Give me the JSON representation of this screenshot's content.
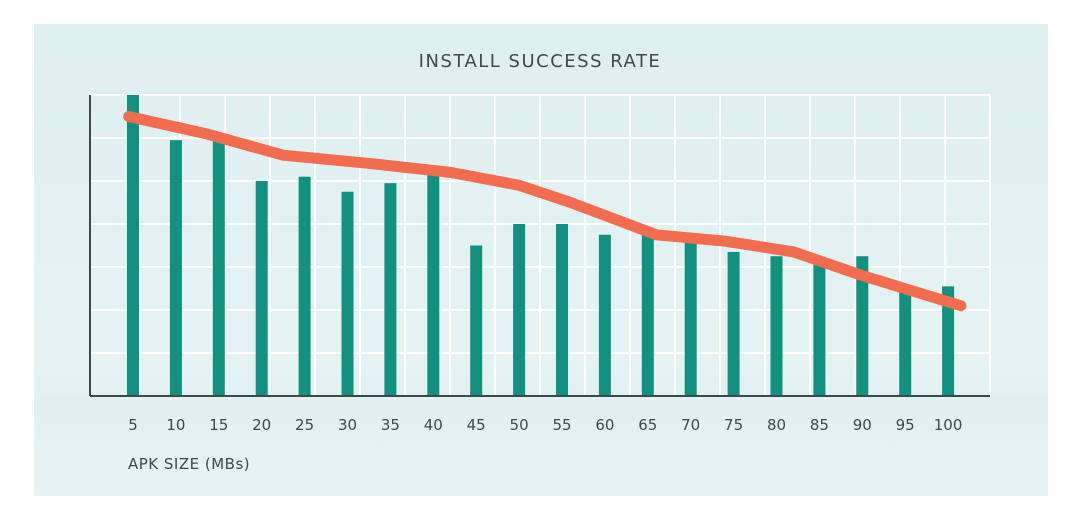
{
  "chart_data": {
    "type": "bar",
    "title": "INSTALL SUCCESS RATE",
    "xlabel": "APK SIZE (MBs)",
    "ylabel": "",
    "categories": [
      "5",
      "10",
      "15",
      "20",
      "25",
      "30",
      "35",
      "40",
      "45",
      "50",
      "55",
      "60",
      "65",
      "70",
      "75",
      "80",
      "85",
      "90",
      "95",
      "100"
    ],
    "ylim": [
      0,
      7
    ],
    "grid": true,
    "series": [
      {
        "values": [
          7.0,
          5.95,
          6.0,
          5.0,
          5.1,
          4.75,
          4.95,
          5.3,
          3.5,
          4.0,
          4.0,
          3.75,
          3.9,
          3.6,
          3.35,
          3.25,
          3.15,
          3.25,
          2.55,
          2.55
        ]
      }
    ],
    "trend": {
      "type": "line",
      "x": [
        4.5,
        13.5,
        22.5,
        33,
        42,
        50,
        56,
        62,
        66,
        74,
        82,
        90,
        101.5
      ],
      "values": [
        6.5,
        6.1,
        5.6,
        5.4,
        5.2,
        4.9,
        4.5,
        4.05,
        3.75,
        3.6,
        3.35,
        2.8,
        2.1
      ]
    },
    "colors": {
      "bar": "#14917e",
      "trend": "#f26c50",
      "grid": "#ffffff",
      "axis": "#3c4a4c"
    }
  }
}
